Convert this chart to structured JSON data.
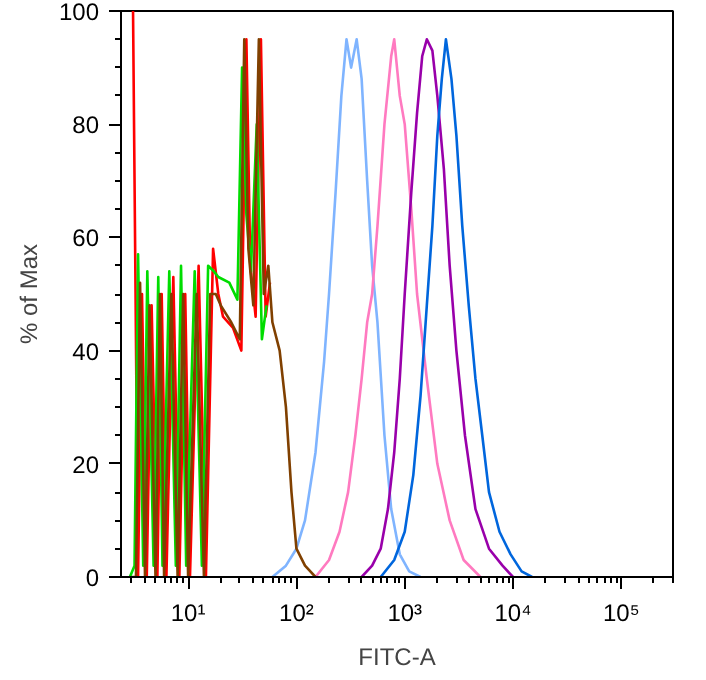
{
  "chart_data": {
    "type": "line",
    "xlabel": "FITC-A",
    "ylabel": "% of Max",
    "log": "x",
    "xlim": [
      2.4,
      300000
    ],
    "ylim": [
      0,
      100
    ],
    "xticks": [
      {
        "value": 10,
        "label": "10¹"
      },
      {
        "value": 100,
        "label": "10²"
      },
      {
        "value": 1000,
        "label": "10³"
      },
      {
        "value": 10000,
        "label": "10⁴"
      },
      {
        "value": 100000,
        "label": "10⁵"
      }
    ],
    "yticks": [
      0,
      20,
      40,
      60,
      80,
      100
    ],
    "grid": false,
    "marker": "none",
    "line_style": "solid",
    "series": [
      {
        "color": "#7fb4ff",
        "x": [
          60,
          80,
          100,
          120,
          150,
          180,
          200,
          230,
          260,
          290,
          320,
          360,
          400,
          450,
          500,
          560,
          650,
          750,
          900,
          1100,
          1400
        ],
        "values": [
          0,
          2,
          5,
          10,
          22,
          38,
          50,
          68,
          85,
          95,
          90,
          95,
          88,
          70,
          55,
          45,
          25,
          12,
          4,
          1,
          0
        ]
      },
      {
        "color": "#ff7ac0",
        "x": [
          150,
          200,
          250,
          300,
          350,
          400,
          450,
          500,
          560,
          650,
          750,
          800,
          900,
          1000,
          1150,
          1300,
          1600,
          2000,
          2600,
          3500,
          5000
        ],
        "values": [
          0,
          3,
          8,
          15,
          25,
          35,
          45,
          50,
          62,
          80,
          92,
          95,
          85,
          80,
          65,
          50,
          35,
          20,
          10,
          3,
          0
        ]
      },
      {
        "color": "#9900aa",
        "x": [
          400,
          500,
          600,
          700,
          800,
          900,
          1000,
          1150,
          1300,
          1450,
          1600,
          1800,
          2000,
          2300,
          2600,
          3000,
          3600,
          4500,
          6000,
          8000,
          10000
        ],
        "values": [
          0,
          2,
          5,
          12,
          22,
          35,
          50,
          68,
          82,
          92,
          95,
          93,
          85,
          72,
          55,
          40,
          25,
          12,
          5,
          2,
          0
        ]
      },
      {
        "color": "#0066dd",
        "x": [
          600,
          800,
          1000,
          1200,
          1400,
          1600,
          1800,
          2000,
          2200,
          2400,
          2700,
          3000,
          3400,
          3900,
          4500,
          5200,
          6000,
          7500,
          9500,
          12000,
          15000
        ],
        "values": [
          0,
          3,
          8,
          18,
          32,
          48,
          62,
          78,
          88,
          95,
          88,
          78,
          62,
          48,
          35,
          25,
          15,
          8,
          4,
          1,
          0
        ]
      },
      {
        "color": "#ff0000",
        "x": [
          3.1,
          3.45,
          3.75,
          4.15,
          4.6,
          5.2,
          5.7,
          6.3,
          7.3,
          8.3,
          9.4,
          10.4,
          12.5,
          14.6,
          17,
          19,
          21,
          26,
          31,
          34.5,
          37.5,
          42,
          47,
          52,
          57
        ],
        "values": [
          100,
          0,
          50,
          0,
          48,
          0,
          50,
          0,
          53,
          0,
          50,
          0,
          55,
          0,
          58,
          50,
          46,
          44,
          40,
          95,
          55,
          46,
          95,
          46,
          52
        ]
      },
      {
        "color": "#00dd00",
        "x": [
          2.9,
          3.2,
          3.45,
          3.85,
          4.2,
          4.8,
          5.3,
          5.8,
          6.7,
          7.7,
          8.6,
          9.6,
          11.5,
          13.4,
          15.3,
          17.3,
          19,
          24,
          28.5,
          31.5,
          34.5,
          38,
          43,
          48,
          53
        ],
        "values": [
          0,
          2,
          57,
          2,
          54,
          2,
          53,
          2,
          54,
          2,
          55,
          2,
          54,
          2,
          55,
          54,
          53,
          52,
          49,
          90,
          64,
          54,
          80,
          42,
          48
        ]
      },
      {
        "color": "#804000",
        "x": [
          3,
          3.3,
          3.6,
          4,
          4.4,
          5,
          5.5,
          6,
          7,
          8,
          9,
          10,
          12,
          14,
          16,
          18,
          20,
          25,
          30,
          33,
          36,
          40,
          45,
          50,
          55,
          60,
          70,
          80,
          90,
          100,
          120,
          150
        ],
        "values": [
          0,
          0,
          52,
          0,
          48,
          0,
          50,
          0,
          50,
          0,
          50,
          0,
          50,
          0,
          50,
          50,
          48,
          45,
          42,
          95,
          58,
          48,
          95,
          50,
          55,
          45,
          40,
          30,
          15,
          5,
          2,
          0
        ]
      }
    ]
  }
}
